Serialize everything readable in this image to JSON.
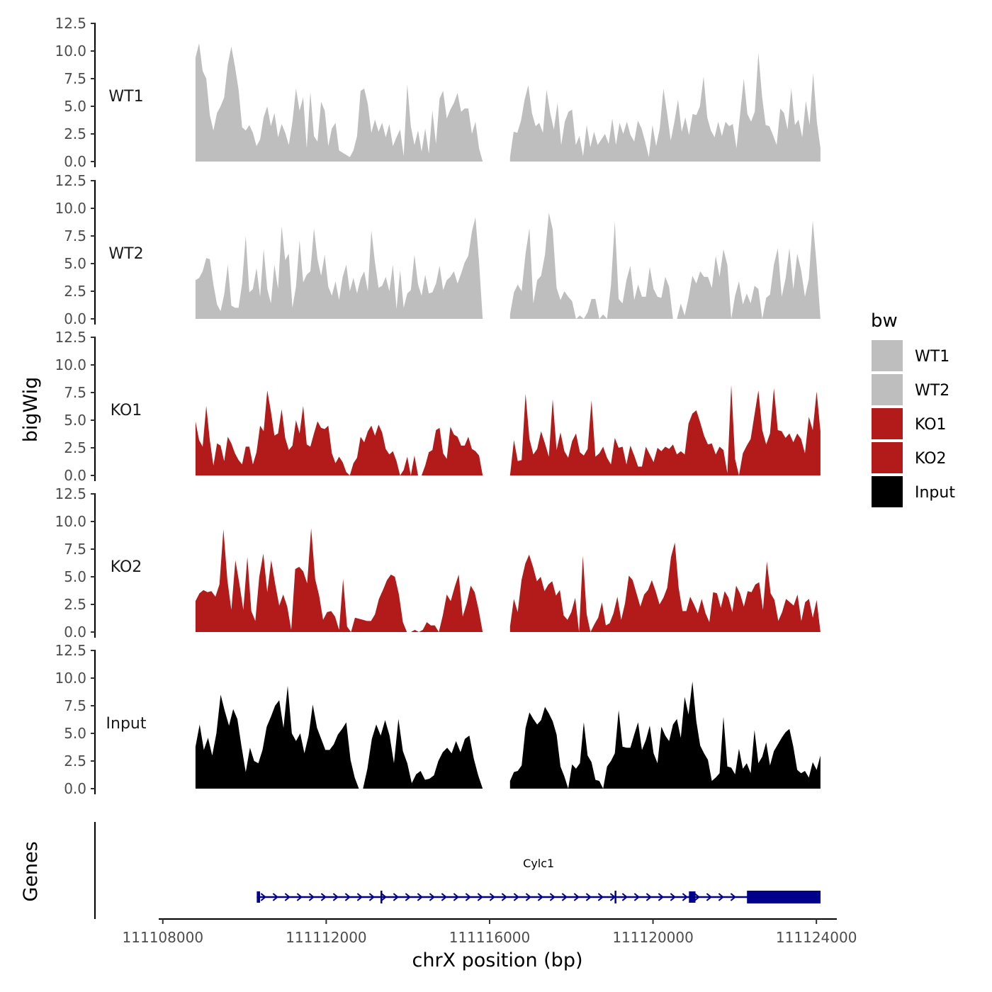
{
  "chart_data": {
    "type": "area",
    "ylabel": "bigWig",
    "xlabel": "chrX position (bp)",
    "ylim": [
      0,
      12.5
    ],
    "yticks": [
      "0.0",
      "2.5",
      "5.0",
      "7.5",
      "10.0",
      "12.5"
    ],
    "xlim": [
      111107900,
      111124500
    ],
    "xticks": [
      111108000,
      111112000,
      111116000,
      111120000,
      111124000
    ],
    "xtick_labels": [
      "111108000",
      "111112000",
      "111116000",
      "111120000",
      "111124000"
    ],
    "data_range": [
      111108800,
      111124100
    ],
    "gap": [
      111115900,
      111116500
    ],
    "legend": {
      "title": "bw",
      "entries": [
        {
          "label": "WT1",
          "color": "#bebebe"
        },
        {
          "label": "WT2",
          "color": "#bebebe"
        },
        {
          "label": "KO1",
          "color": "#b31b1b"
        },
        {
          "label": "KO2",
          "color": "#b31b1b"
        },
        {
          "label": "Input",
          "color": "#000000"
        }
      ]
    },
    "tracks": [
      {
        "name": "WT1",
        "color": "#bebebe",
        "segments": [
          {
            "start": 111108800,
            "end": 111115830,
            "values": [
              9.4,
              10.7,
              8.2,
              7.5,
              4.2,
              2.8,
              4.4,
              5.0,
              5.8,
              8.8,
              10.4,
              8.6,
              6.5,
              3.1,
              2.8,
              3.3,
              2.6,
              1.4,
              2.0,
              4.0,
              5.0,
              3.2,
              4.4,
              2.2,
              3.4,
              2.6,
              1.5,
              3.6,
              6.6,
              4.6,
              5.8,
              1.2,
              6.3,
              2.3,
              1.8,
              5.4,
              4.6,
              1.4,
              3.0,
              3.5,
              1.0,
              0.8,
              0.6,
              0.4,
              1.0,
              2.3,
              6.4,
              6.6,
              5.2,
              2.6,
              3.8,
              2.7,
              3.5,
              2.2,
              3.4,
              1.4,
              2.2,
              2.9,
              0.5,
              7.0,
              3.2,
              1.5,
              2.8,
              0.9,
              3.0,
              0.7,
              4.6,
              1.6,
              5.7,
              6.4,
              3.9,
              4.7,
              5.3,
              6.2,
              4.5,
              4.8,
              4.8,
              2.5,
              3.6,
              1.2,
              0.0
            ]
          },
          {
            "start": 111116500,
            "end": 111124100,
            "values": [
              0.4,
              2.7,
              2.6,
              3.7,
              5.6,
              6.9,
              4.4,
              3.2,
              3.5,
              2.6,
              6.5,
              4.4,
              2.9,
              5.3,
              1.5,
              3.6,
              4.5,
              4.7,
              1.5,
              2.3,
              0.5,
              3.3,
              1.3,
              2.7,
              1.5,
              2.0,
              2.5,
              1.6,
              3.9,
              1.5,
              3.5,
              2.5,
              3.6,
              2.4,
              1.8,
              3.7,
              3.0,
              1.8,
              0.4,
              3.3,
              1.4,
              3.0,
              6.6,
              4.4,
              1.9,
              3.6,
              5.6,
              2.7,
              4.0,
              2.4,
              4.3,
              4.2,
              5.0,
              7.7,
              4.0,
              2.8,
              2.2,
              3.6,
              2.3,
              3.6,
              3.2,
              3.4,
              1.2,
              4.3,
              7.5,
              4.3,
              3.6,
              4.5,
              9.8,
              5.9,
              3.3,
              3.2,
              2.4,
              1.5,
              4.8,
              4.4,
              2.9,
              6.6,
              3.3,
              3.8,
              2.2,
              5.5,
              3.3,
              8.0,
              3.6,
              1.2
            ]
          }
        ]
      },
      {
        "name": "WT2",
        "color": "#bebebe",
        "segments": [
          {
            "start": 111108800,
            "end": 111115830,
            "values": [
              3.5,
              3.7,
              4.3,
              5.5,
              5.4,
              3.1,
              1.3,
              0.7,
              2.2,
              4.9,
              1.2,
              1.0,
              1.0,
              3.2,
              7.5,
              2.4,
              2.7,
              4.6,
              2.0,
              6.3,
              2.7,
              1.4,
              4.9,
              2.7,
              8.4,
              5.3,
              5.9,
              1.0,
              2.9,
              7.1,
              3.3,
              4.0,
              4.3,
              8.2,
              5.4,
              3.9,
              5.8,
              2.9,
              2.1,
              3.4,
              1.7,
              3.8,
              4.9,
              2.5,
              3.7,
              2.3,
              3.6,
              4.3,
              2.5,
              8.0,
              5.1,
              2.8,
              3.0,
              3.8,
              2.5,
              4.9,
              0.9,
              4.4,
              1.0,
              2.3,
              2.6,
              5.8,
              3.1,
              2.1,
              4.0,
              2.3,
              2.4,
              3.2,
              4.8,
              2.6,
              3.5,
              3.8,
              4.3,
              3.2,
              4.1,
              5.1,
              5.7,
              7.9,
              9.2,
              5.1,
              0.0
            ]
          },
          {
            "start": 111116500,
            "end": 111124100,
            "values": [
              0.4,
              2.4,
              3.1,
              2.5,
              5.9,
              8.2,
              1.4,
              3.5,
              3.9,
              5.8,
              9.6,
              8.1,
              2.8,
              1.7,
              2.5,
              2.0,
              1.6,
              0.0,
              0.3,
              0.0,
              0.6,
              1.8,
              1.8,
              0.0,
              0.4,
              0.0,
              3.0,
              8.8,
              1.8,
              1.4,
              3.5,
              4.8,
              1.7,
              3.1,
              2.0,
              2.0,
              4.7,
              2.7,
              2.0,
              1.9,
              3.8,
              2.9,
              0.0,
              0.0,
              1.4,
              0.3,
              1.9,
              3.9,
              3.2,
              4.3,
              3.8,
              3.8,
              2.8,
              5.7,
              3.8,
              6.3,
              4.9,
              0.0,
              2.1,
              3.4,
              1.3,
              2.3,
              1.4,
              3.0,
              2.7,
              0.0,
              1.9,
              2.2,
              4.9,
              6.4,
              2.0,
              3.6,
              6.4,
              2.7,
              5.9,
              4.4,
              2.0,
              3.6,
              8.9,
              4.9,
              0.0
            ]
          }
        ]
      },
      {
        "name": "KO1",
        "color": "#b31b1b",
        "segments": [
          {
            "start": 111108800,
            "end": 111115830,
            "values": [
              4.9,
              3.2,
              2.6,
              6.3,
              3.2,
              0.9,
              2.9,
              2.7,
              1.3,
              3.5,
              2.9,
              2.0,
              1.4,
              1.0,
              2.6,
              2.6,
              1.0,
              2.1,
              4.5,
              4.0,
              7.7,
              5.8,
              3.6,
              3.8,
              6.0,
              3.4,
              2.3,
              2.7,
              5.0,
              3.8,
              6.3,
              2.8,
              2.6,
              3.8,
              4.9,
              4.3,
              4.2,
              4.5,
              2.0,
              1.1,
              1.7,
              1.2,
              0.3,
              0.0,
              1.1,
              1.6,
              3.5,
              3.0,
              4.0,
              4.5,
              3.6,
              4.6,
              3.9,
              2.4,
              1.9,
              2.2,
              1.3,
              0.0,
              0.5,
              1.7,
              0.0,
              1.8,
              0.0,
              0.0,
              0.9,
              2.1,
              2.3,
              4.1,
              4.3,
              2.0,
              1.5,
              4.4,
              3.7,
              3.5,
              2.7,
              2.7,
              3.5,
              2.4,
              2.2,
              1.8,
              0.0
            ]
          },
          {
            "start": 111116500,
            "end": 111124100,
            "values": [
              0.0,
              3.2,
              1.3,
              1.4,
              7.4,
              3.3,
              1.9,
              2.4,
              4.0,
              2.9,
              1.7,
              6.9,
              2.3,
              3.9,
              2.2,
              1.6,
              3.1,
              3.8,
              2.1,
              1.8,
              2.4,
              6.8,
              1.7,
              2.0,
              2.6,
              1.6,
              1.0,
              3.4,
              2.5,
              2.6,
              1.0,
              2.7,
              1.8,
              0.8,
              0.8,
              2.6,
              1.9,
              1.2,
              2.5,
              2.2,
              2.6,
              2.4,
              2.8,
              1.9,
              2.2,
              1.9,
              4.7,
              5.6,
              5.9,
              4.8,
              3.6,
              2.8,
              2.9,
              1.9,
              2.6,
              2.3,
              0.2,
              8.2,
              1.5,
              0.0,
              2.0,
              2.7,
              3.3,
              5.5,
              7.7,
              4.1,
              2.8,
              3.8,
              7.9,
              4.1,
              4.0,
              3.4,
              3.8,
              3.0,
              3.8,
              3.3,
              2.0,
              5.3,
              4.1,
              7.6,
              4.0
            ]
          }
        ]
      },
      {
        "name": "KO2",
        "color": "#b31b1b",
        "segments": [
          {
            "start": 111108800,
            "end": 111115830,
            "values": [
              2.8,
              3.5,
              3.8,
              3.6,
              3.7,
              3.2,
              4.3,
              9.3,
              4.7,
              2.0,
              6.5,
              4.4,
              2.0,
              6.8,
              1.9,
              1.0,
              5.0,
              7.1,
              3.6,
              6.5,
              4.3,
              2.4,
              3.4,
              2.3,
              0.2,
              5.7,
              5.9,
              5.5,
              4.4,
              9.4,
              4.8,
              3.3,
              1.1,
              1.8,
              1.9,
              1.4,
              0.2,
              4.8,
              0.5,
              0.0,
              1.3,
              1.2,
              1.1,
              1.0,
              1.0,
              1.6,
              3.0,
              3.8,
              4.7,
              5.2,
              5.0,
              3.4,
              0.9,
              0.0,
              0.0,
              0.2,
              0.0,
              0.2,
              0.9,
              0.6,
              0.6,
              0.0,
              1.5,
              3.4,
              2.8,
              4.1,
              5.2,
              1.4,
              2.6,
              4.2,
              3.6,
              2.0,
              0.0
            ]
          },
          {
            "start": 111116500,
            "end": 111124100,
            "values": [
              0.5,
              3.0,
              1.8,
              4.7,
              6.2,
              7.0,
              5.9,
              4.6,
              5.0,
              3.7,
              4.3,
              4.6,
              3.3,
              3.8,
              1.5,
              1.1,
              1.8,
              3.1,
              0.0,
              6.9,
              1.6,
              0.0,
              0.7,
              1.3,
              2.7,
              0.6,
              0.8,
              1.7,
              3.2,
              1.1,
              2.6,
              5.1,
              4.7,
              3.5,
              2.3,
              3.4,
              3.8,
              4.7,
              3.7,
              2.5,
              3.1,
              4.0,
              6.8,
              8.1,
              4.0,
              1.9,
              1.9,
              3.2,
              2.5,
              1.7,
              3.0,
              1.7,
              0.9,
              3.6,
              3.5,
              2.2,
              3.7,
              3.1,
              1.8,
              4.2,
              3.5,
              2.3,
              3.7,
              3.6,
              4.3,
              4.5,
              2.0,
              6.4,
              3.5,
              2.9,
              1.0,
              1.8,
              3.0,
              2.7,
              2.4,
              3.4,
              1.0,
              2.7,
              3.0,
              1.3,
              2.9,
              0.0
            ]
          }
        ]
      },
      {
        "name": "Input",
        "color": "#000000",
        "segments": [
          {
            "start": 111108800,
            "end": 111112800,
            "values": [
              3.8,
              5.8,
              3.5,
              4.6,
              3.0,
              5.0,
              8.5,
              7.0,
              5.7,
              7.2,
              6.3,
              3.8,
              1.5,
              3.7,
              2.5,
              2.3,
              3.5,
              5.6,
              6.5,
              7.5,
              8.0,
              5.5,
              9.3,
              5.0,
              4.3,
              5.0,
              3.2,
              4.8,
              7.6,
              5.5,
              4.5,
              3.5,
              3.5,
              4.0,
              4.9,
              5.4,
              6.0,
              2.6,
              1.0,
              0.0
            ]
          },
          {
            "start": 111112900,
            "end": 111115830,
            "values": [
              0.0,
              1.8,
              4.5,
              5.8,
              4.8,
              6.2,
              4.8,
              2.3,
              6.3,
              3.4,
              2.3,
              0.5,
              1.3,
              1.6,
              0.8,
              0.9,
              1.2,
              2.5,
              3.3,
              3.7,
              3.2,
              4.3,
              3.3,
              4.5,
              4.8,
              2.7,
              1.2,
              0.0
            ]
          },
          {
            "start": 111116500,
            "end": 111124100,
            "values": [
              0.7,
              1.5,
              1.6,
              2.1,
              5.5,
              6.9,
              6.3,
              5.8,
              6.2,
              7.4,
              6.8,
              6.1,
              4.9,
              2.0,
              1.1,
              0.0,
              2.2,
              1.8,
              2.3,
              6.0,
              3.0,
              2.4,
              0.8,
              0.7,
              0.0,
              2.0,
              2.5,
              3.2,
              7.1,
              3.8,
              3.7,
              3.7,
              4.9,
              6.0,
              3.5,
              4.4,
              5.7,
              3.2,
              2.3,
              5.6,
              4.8,
              4.3,
              5.8,
              6.3,
              4.6,
              8.3,
              6.7,
              9.7,
              6.1,
              3.9,
              3.2,
              2.6,
              0.7,
              1.0,
              1.4,
              6.5,
              2.0,
              1.9,
              1.3,
              3.6,
              1.8,
              2.3,
              1.4,
              5.3,
              2.3,
              2.9,
              4.2,
              2.1,
              3.4,
              4.0,
              4.6,
              5.1,
              5.4,
              3.8,
              1.7,
              1.4,
              1.6,
              1.0,
              2.4,
              1.7,
              3.0
            ]
          }
        ]
      }
    ],
    "genes_track": {
      "label": "Genes",
      "gene": {
        "name": "Cylc1",
        "strand": "+",
        "start": 111110300,
        "end": 111124100,
        "color": "#00008b",
        "exons": [
          {
            "start": 111110300,
            "end": 111110380
          },
          {
            "start": 111113330,
            "end": 111113360
          },
          {
            "start": 111119060,
            "end": 111119090
          },
          {
            "start": 111120880,
            "end": 111121040
          },
          {
            "start": 111122300,
            "end": 111124100
          }
        ]
      }
    }
  }
}
